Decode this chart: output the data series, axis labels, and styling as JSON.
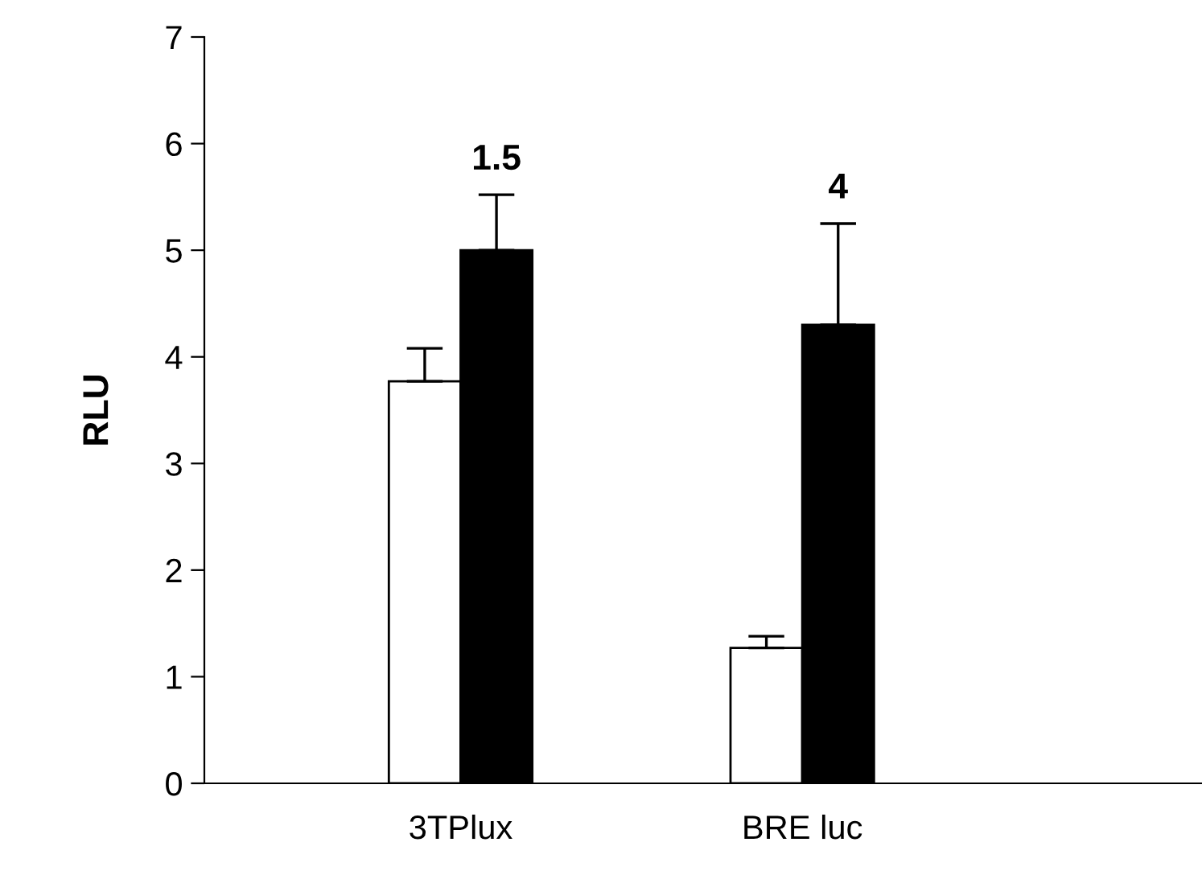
{
  "chart_data": {
    "type": "bar",
    "ylabel": "RLU",
    "categories": [
      "3TPlux",
      "BRE luc"
    ],
    "series": [
      {
        "color": "#ffffff",
        "values": [
          3.77,
          1.27
        ],
        "errors": [
          [
            3.77,
            4.08
          ],
          [
            1.27,
            1.38
          ]
        ]
      },
      {
        "color": "#000000",
        "values": [
          5.0,
          4.3
        ],
        "errors": [
          [
            5.0,
            5.52
          ],
          [
            4.3,
            5.25
          ]
        ]
      }
    ],
    "annotations": [
      "1.5",
      "4"
    ],
    "ylim": [
      0,
      7
    ],
    "yticks": [
      0,
      1,
      2,
      3,
      4,
      5,
      6,
      7
    ],
    "grid": false
  }
}
